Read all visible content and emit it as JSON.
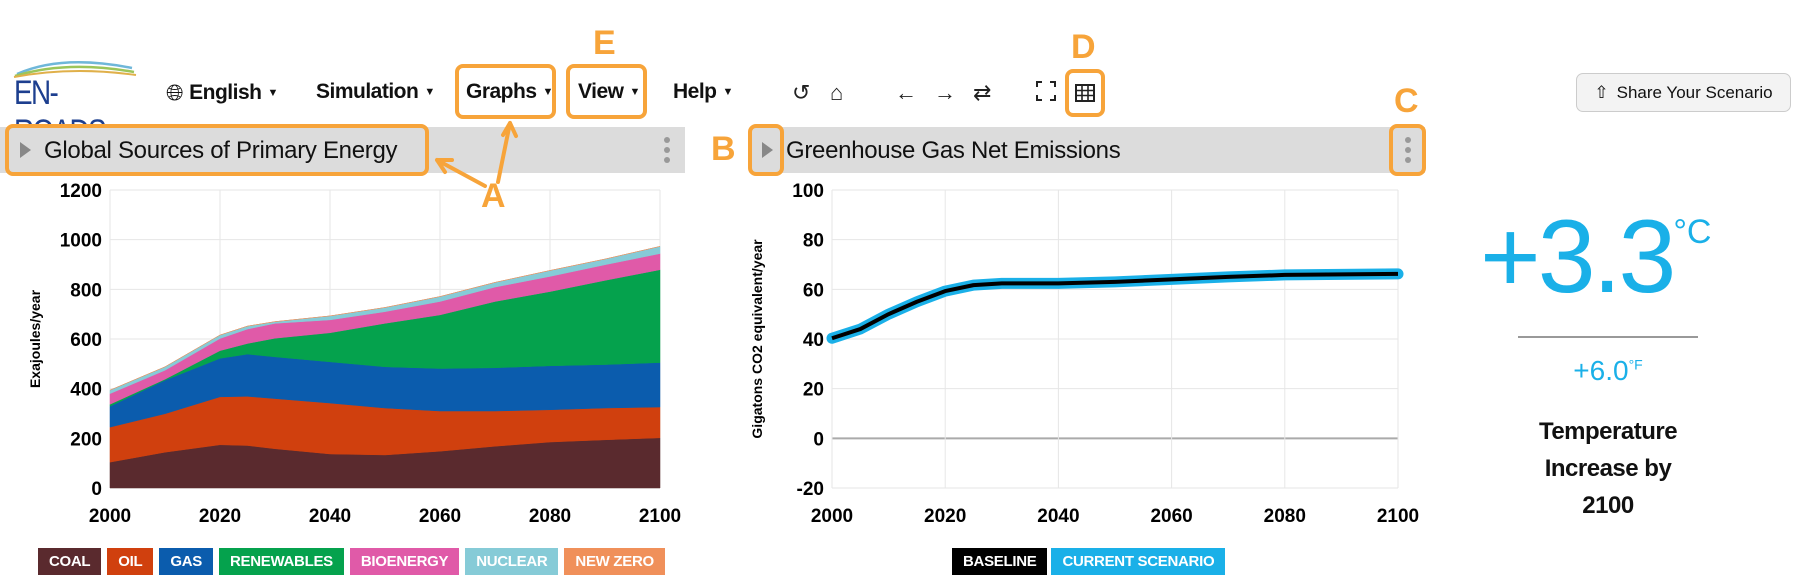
{
  "header": {
    "logo_text": "EN-ROADS",
    "menus": [
      {
        "label": "English",
        "icon": "globe-icon"
      },
      {
        "label": "Simulation"
      },
      {
        "label": "Graphs"
      },
      {
        "label": "View"
      },
      {
        "label": "Help"
      }
    ],
    "toolbar_icons": [
      "undo-icon",
      "home-icon",
      "arrow-left-icon",
      "arrow-right-icon",
      "swap-icon",
      "fullscreen-icon",
      "table-icon"
    ],
    "share_label": "Share Your Scenario"
  },
  "annotations": {
    "A": "A",
    "B": "B",
    "C": "C",
    "D": "D",
    "E": "E",
    "color": "#f7a43a"
  },
  "left_panel": {
    "title": "Global Sources of Primary Energy"
  },
  "right_panel": {
    "title": "Greenhouse Gas Net Emissions"
  },
  "temperature": {
    "celsius": "+3.3",
    "celsius_unit": "°C",
    "fahrenheit": "+6.0",
    "fahrenheit_unit": "°F",
    "label_lines": [
      "Temperature",
      "Increase by",
      "2100"
    ],
    "color": "#1ab0e8"
  },
  "chart_data": [
    {
      "type": "area",
      "stacked": true,
      "ylabel": "Exajoules/year",
      "xlim": [
        2000,
        2100
      ],
      "ylim": [
        0,
        1200
      ],
      "x_ticks": [
        2000,
        2020,
        2040,
        2060,
        2080,
        2100
      ],
      "y_ticks": [
        0,
        200,
        400,
        600,
        800,
        1000,
        1200
      ],
      "grid": true,
      "legend_position": "bottom",
      "x": [
        2000,
        2010,
        2020,
        2025,
        2030,
        2040,
        2050,
        2060,
        2070,
        2080,
        2090,
        2100
      ],
      "series": [
        {
          "name": "COAL",
          "color": "#5a2a2e",
          "values": [
            104,
            144,
            174,
            171,
            158,
            137,
            133,
            148,
            168,
            185,
            194,
            202
          ]
        },
        {
          "name": "OIL",
          "color": "#d0400e",
          "values": [
            141,
            155,
            193,
            198,
            202,
            205,
            189,
            162,
            142,
            130,
            128,
            124
          ]
        },
        {
          "name": "GAS",
          "color": "#0b5cad",
          "values": [
            84,
            135,
            155,
            170,
            168,
            166,
            166,
            171,
            174,
            177,
            175,
            179
          ]
        },
        {
          "name": "RENEWABLES",
          "color": "#05a24d",
          "values": [
            8,
            4,
            31,
            43,
            75,
            117,
            175,
            216,
            267,
            299,
            339,
            374
          ]
        },
        {
          "name": "BIOENERGY",
          "color": "#e05aa8",
          "values": [
            43,
            36,
            49,
            58,
            60,
            52,
            47,
            54,
            58,
            61,
            63,
            65
          ]
        },
        {
          "name": "NUCLEAR",
          "color": "#86cbd7",
          "values": [
            14,
            14,
            14,
            12,
            7,
            16,
            17,
            20,
            19,
            24,
            23,
            29
          ]
        },
        {
          "name": "NEW ZERO",
          "color": "#f0905a",
          "values": [
            0,
            0,
            0,
            0,
            0,
            0,
            0,
            0,
            0,
            0,
            0,
            0
          ]
        }
      ]
    },
    {
      "type": "line",
      "ylabel": "Gigatons CO2 equivalent/year",
      "xlim": [
        2000,
        2100
      ],
      "ylim": [
        -20,
        100
      ],
      "x_ticks": [
        2000,
        2020,
        2040,
        2060,
        2080,
        2100
      ],
      "y_ticks": [
        -20,
        0,
        20,
        40,
        60,
        80,
        100
      ],
      "grid": true,
      "legend_position": "bottom",
      "x": [
        2000,
        2005,
        2010,
        2015,
        2020,
        2025,
        2030,
        2040,
        2050,
        2060,
        2070,
        2080,
        2090,
        2100
      ],
      "series": [
        {
          "name": "BASELINE",
          "color": "#000000",
          "values": [
            40.3,
            44,
            50,
            55,
            59.3,
            61.7,
            62.4,
            62.4,
            63,
            64,
            65,
            65.8,
            66,
            66.2
          ]
        },
        {
          "name": "CURRENT SCENARIO",
          "color": "#1ab0e8",
          "values": [
            40.3,
            44,
            50,
            55,
            59.3,
            61.7,
            62.4,
            62.4,
            63,
            64,
            65,
            65.8,
            66,
            66.2
          ]
        }
      ]
    }
  ]
}
